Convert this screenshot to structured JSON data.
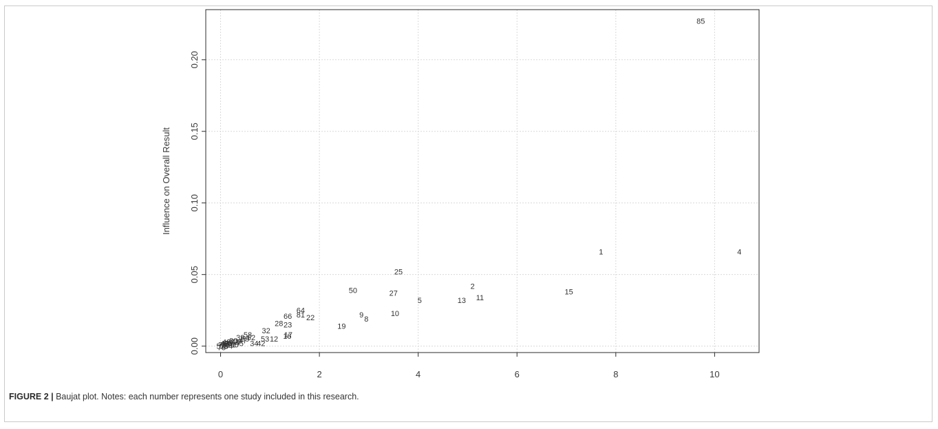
{
  "caption": {
    "label": "FIGURE 2 |",
    "text": " Baujat plot. Notes: each number represents one study included in this research."
  },
  "chart_data": {
    "type": "scatter",
    "title": "",
    "xlabel": "",
    "ylabel": "Influence on Overall Result",
    "xlim": [
      -0.3,
      10.9
    ],
    "ylim": [
      -0.0045,
      0.235
    ],
    "xticks": [
      0,
      2,
      4,
      6,
      8,
      10
    ],
    "yticks": [
      0.0,
      0.05,
      0.1,
      0.15,
      0.2
    ],
    "ytick_labels": [
      "0.00",
      "0.05",
      "0.10",
      "0.15",
      "0.20"
    ],
    "grid": true,
    "point_marker": "study number label",
    "points": [
      {
        "label": "85",
        "x": 9.72,
        "y": 0.227
      },
      {
        "label": "1",
        "x": 7.7,
        "y": 0.066
      },
      {
        "label": "4",
        "x": 10.5,
        "y": 0.066
      },
      {
        "label": "25",
        "x": 3.6,
        "y": 0.052
      },
      {
        "label": "50",
        "x": 2.68,
        "y": 0.039
      },
      {
        "label": "2",
        "x": 5.1,
        "y": 0.042
      },
      {
        "label": "27",
        "x": 3.5,
        "y": 0.037
      },
      {
        "label": "11",
        "x": 5.25,
        "y": 0.034
      },
      {
        "label": "15",
        "x": 7.05,
        "y": 0.038
      },
      {
        "label": "5",
        "x": 4.03,
        "y": 0.032
      },
      {
        "label": "13",
        "x": 4.88,
        "y": 0.032
      },
      {
        "label": "10",
        "x": 3.53,
        "y": 0.023
      },
      {
        "label": "9",
        "x": 2.85,
        "y": 0.022
      },
      {
        "label": "8",
        "x": 2.95,
        "y": 0.019
      },
      {
        "label": "19",
        "x": 2.45,
        "y": 0.014
      },
      {
        "label": "64",
        "x": 1.62,
        "y": 0.025
      },
      {
        "label": "81",
        "x": 1.62,
        "y": 0.022
      },
      {
        "label": "66",
        "x": 1.36,
        "y": 0.021
      },
      {
        "label": "22",
        "x": 1.82,
        "y": 0.02
      },
      {
        "label": "28",
        "x": 1.18,
        "y": 0.016
      },
      {
        "label": "23",
        "x": 1.36,
        "y": 0.015
      },
      {
        "label": "32",
        "x": 0.92,
        "y": 0.011
      },
      {
        "label": "17",
        "x": 1.37,
        "y": 0.008
      },
      {
        "label": "16",
        "x": 1.35,
        "y": 0.007
      },
      {
        "label": "53",
        "x": 0.9,
        "y": 0.005
      },
      {
        "label": "12",
        "x": 1.08,
        "y": 0.005
      },
      {
        "label": "58",
        "x": 0.55,
        "y": 0.008
      },
      {
        "label": "34",
        "x": 0.68,
        "y": 0.002
      },
      {
        "label": "42",
        "x": 0.82,
        "y": 0.002
      },
      {
        "label": "62",
        "x": 0.62,
        "y": 0.006
      },
      {
        "label": "44",
        "x": 0.3,
        "y": 0.003
      },
      {
        "label": "39",
        "x": 0.4,
        "y": 0.006
      },
      {
        "label": "31",
        "x": 0.18,
        "y": 0.002
      },
      {
        "label": "47",
        "x": 0.45,
        "y": 0.004
      },
      {
        "label": "36",
        "x": 0.1,
        "y": 0.001
      },
      {
        "label": "71",
        "x": 0.22,
        "y": 0.001
      },
      {
        "label": "55",
        "x": 0.06,
        "y": 0.0
      },
      {
        "label": "69",
        "x": 0.14,
        "y": 0.002
      },
      {
        "label": "75",
        "x": 0.02,
        "y": -0.001
      },
      {
        "label": "80",
        "x": 0.26,
        "y": 0.004
      },
      {
        "label": "77",
        "x": 0.34,
        "y": 0.003
      },
      {
        "label": "48",
        "x": 0.08,
        "y": 0.002
      },
      {
        "label": "59",
        "x": 0.5,
        "y": 0.005
      },
      {
        "label": "73",
        "x": 0.04,
        "y": 0.001
      },
      {
        "label": "84",
        "x": 0.16,
        "y": 0.0
      },
      {
        "label": "40",
        "x": 0.12,
        "y": 0.003
      },
      {
        "label": "67",
        "x": 0.2,
        "y": 0.003
      },
      {
        "label": "52",
        "x": 0.0,
        "y": 0.0
      },
      {
        "label": "45",
        "x": 0.38,
        "y": 0.002
      },
      {
        "label": "60",
        "x": 0.28,
        "y": 0.001
      }
    ]
  }
}
